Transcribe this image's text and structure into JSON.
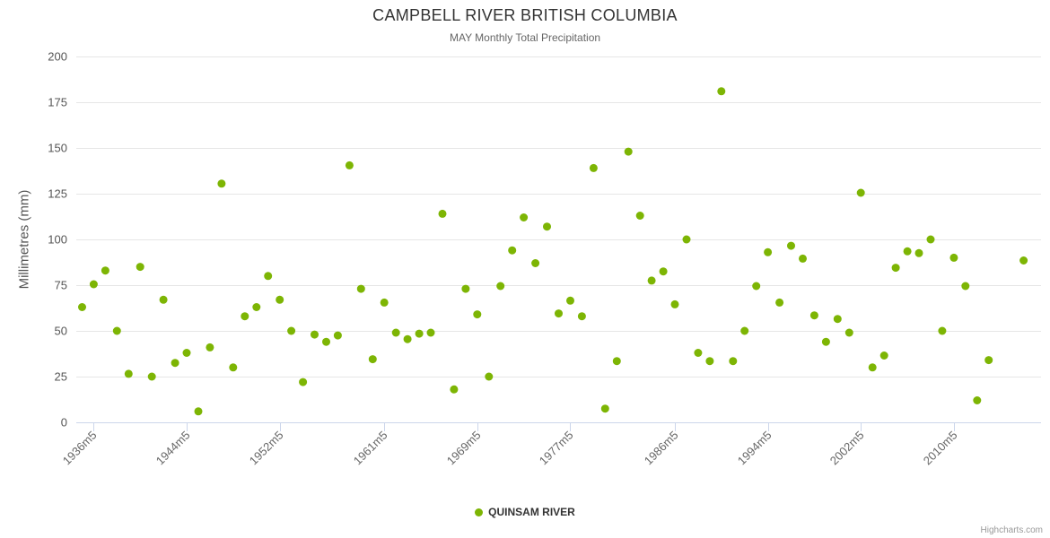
{
  "header": {
    "title": "CAMPBELL RIVER BRITISH COLUMBIA",
    "subtitle": "MAY Monthly Total Precipitation"
  },
  "credits": {
    "label": "Highcharts.com"
  },
  "chart_data": {
    "type": "scatter",
    "title": "CAMPBELL RIVER BRITISH COLUMBIA",
    "subtitle": "MAY Monthly Total Precipitation",
    "ylabel": "Millimetres (mm)",
    "ylim": [
      0,
      200
    ],
    "ytick_interval": 25,
    "xlim": [
      1935,
      2017
    ],
    "x_suffix": "m5",
    "xtick_years": [
      1936,
      1944,
      1952,
      1961,
      1969,
      1977,
      1986,
      1994,
      2002,
      2010
    ],
    "grid": true,
    "legend_position": "bottom",
    "colors": {
      "point": "#7db504",
      "grid": "#e6e6e6",
      "axis": "#ccd6eb",
      "tick_label": "#555555",
      "title": "#333333",
      "subtitle": "#666666"
    },
    "series": [
      {
        "name": "QUINSAM RIVER",
        "color": "#7db504",
        "points": [
          [
            1935,
            63
          ],
          [
            1936,
            75.5
          ],
          [
            1937,
            83
          ],
          [
            1938,
            50
          ],
          [
            1939,
            26.5
          ],
          [
            1940,
            85
          ],
          [
            1941,
            25
          ],
          [
            1942,
            67
          ],
          [
            1943,
            32.5
          ],
          [
            1944,
            38
          ],
          [
            1945,
            6
          ],
          [
            1946,
            41
          ],
          [
            1947,
            130.5
          ],
          [
            1948,
            30
          ],
          [
            1949,
            58
          ],
          [
            1950,
            63
          ],
          [
            1951,
            80
          ],
          [
            1952,
            67
          ],
          [
            1953,
            50
          ],
          [
            1954,
            22
          ],
          [
            1955,
            48
          ],
          [
            1956,
            44
          ],
          [
            1957,
            47.5
          ],
          [
            1958,
            140.5
          ],
          [
            1959,
            73
          ],
          [
            1960,
            34.5
          ],
          [
            1961,
            65.5
          ],
          [
            1962,
            49
          ],
          [
            1963,
            45.5
          ],
          [
            1964,
            48.5
          ],
          [
            1965,
            49
          ],
          [
            1966,
            114
          ],
          [
            1967,
            18
          ],
          [
            1968,
            73
          ],
          [
            1969,
            59
          ],
          [
            1970,
            25
          ],
          [
            1971,
            74.5
          ],
          [
            1972,
            94
          ],
          [
            1973,
            112
          ],
          [
            1974,
            87
          ],
          [
            1975,
            107
          ],
          [
            1976,
            59.5
          ],
          [
            1977,
            66.5
          ],
          [
            1978,
            58
          ],
          [
            1979,
            139
          ],
          [
            1980,
            7.5
          ],
          [
            1981,
            33.5
          ],
          [
            1982,
            148
          ],
          [
            1983,
            113
          ],
          [
            1984,
            77.5
          ],
          [
            1985,
            82.5
          ],
          [
            1986,
            64.5
          ],
          [
            1987,
            100
          ],
          [
            1988,
            38
          ],
          [
            1989,
            33.5
          ],
          [
            1990,
            181
          ],
          [
            1991,
            33.5
          ],
          [
            1992,
            50
          ],
          [
            1993,
            74.5
          ],
          [
            1994,
            93
          ],
          [
            1995,
            65.5
          ],
          [
            1996,
            96.5
          ],
          [
            1997,
            89.5
          ],
          [
            1998,
            58.5
          ],
          [
            1999,
            44
          ],
          [
            2000,
            56.5
          ],
          [
            2001,
            49
          ],
          [
            2002,
            125.5
          ],
          [
            2003,
            30
          ],
          [
            2004,
            36.5
          ],
          [
            2005,
            84.5
          ],
          [
            2006,
            93.5
          ],
          [
            2007,
            92.5
          ],
          [
            2008,
            100
          ],
          [
            2009,
            50
          ],
          [
            2010,
            90
          ],
          [
            2011,
            74.5
          ],
          [
            2012,
            12
          ],
          [
            2013,
            34
          ],
          [
            2014,
            null
          ],
          [
            2015,
            null
          ],
          [
            2016,
            88.5
          ]
        ]
      }
    ]
  }
}
